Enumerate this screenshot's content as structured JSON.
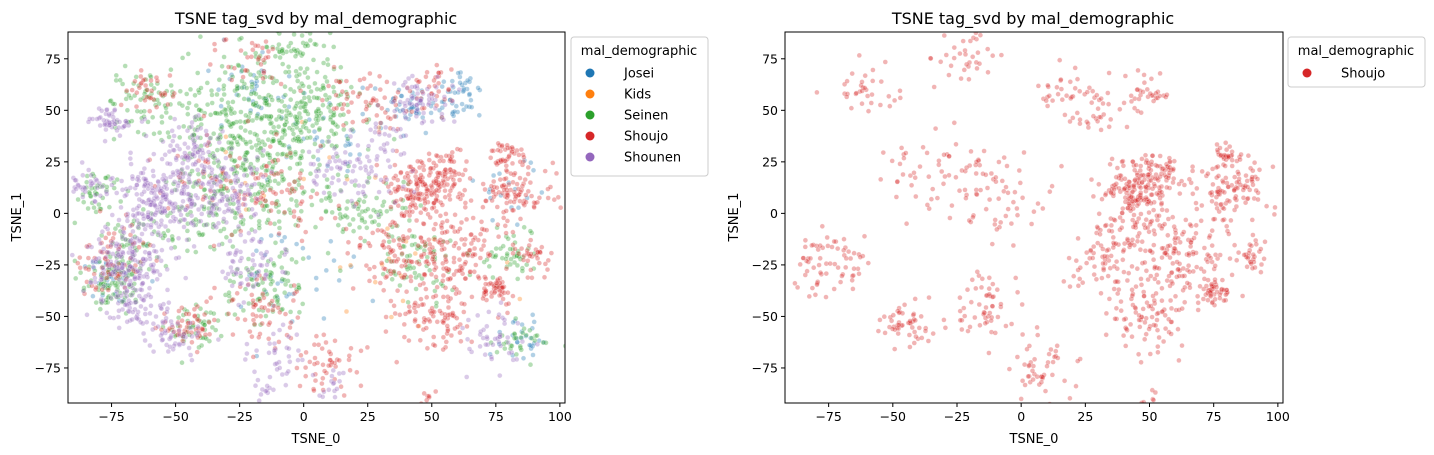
{
  "chart_data": [
    {
      "type": "scatter",
      "title": "TSNE tag_svd by mal_demographic",
      "xlabel": "TSNE_0",
      "ylabel": "TSNE_1",
      "xlim": [
        -92,
        102
      ],
      "ylim": [
        -92,
        88
      ],
      "xticks": [
        -75,
        -50,
        -25,
        0,
        25,
        50,
        75,
        100
      ],
      "yticks": [
        -75,
        -50,
        -25,
        0,
        25,
        50,
        75
      ],
      "grid": false,
      "legend": {
        "title": "mal_demographic",
        "placement": "outside-top-right"
      },
      "point_alpha": 0.35,
      "series": [
        {
          "name": "Josei",
          "color": "#1f77b4",
          "n": 260,
          "clusters": [
            [
              60,
              58,
              5,
              55
            ],
            [
              40,
              50,
              5,
              45
            ],
            [
              -20,
              60,
              8,
              40
            ],
            [
              0,
              -30,
              12,
              40
            ],
            [
              -75,
              -30,
              6,
              30
            ],
            [
              80,
              10,
              7,
              20
            ],
            [
              85,
              -60,
              6,
              30
            ],
            [
              10,
              35,
              10,
              30
            ]
          ]
        },
        {
          "name": "Kids",
          "color": "#ff7f0e",
          "n": 30,
          "clusters": [
            [
              -10,
              20,
              25,
              15
            ],
            [
              40,
              -30,
              20,
              15
            ]
          ]
        },
        {
          "name": "Seinen",
          "color": "#2ca02c",
          "n": 1300,
          "clusters": [
            [
              -25,
              45,
              14,
              260
            ],
            [
              -10,
              20,
              14,
              170
            ],
            [
              5,
              50,
              9,
              110
            ],
            [
              -60,
              55,
              8,
              70
            ],
            [
              -40,
              0,
              10,
              90
            ],
            [
              -75,
              -35,
              6,
              80
            ],
            [
              -80,
              10,
              5,
              40
            ],
            [
              -15,
              -35,
              8,
              80
            ],
            [
              -5,
              80,
              8,
              70
            ],
            [
              -42,
              -55,
              5,
              45
            ],
            [
              25,
              0,
              8,
              65
            ],
            [
              45,
              -25,
              8,
              60
            ],
            [
              80,
              -20,
              6,
              45
            ],
            [
              -65,
              -15,
              6,
              50
            ],
            [
              85,
              -60,
              5,
              30
            ]
          ]
        },
        {
          "name": "Shoujo",
          "color": "#d62728",
          "n": 1250,
          "clusters": [
            [
              45,
              10,
              7,
              150
            ],
            [
              60,
              -20,
              10,
              120
            ],
            [
              82,
              10,
              7,
              90
            ],
            [
              80,
              28,
              3,
              30
            ],
            [
              75,
              -37,
              3,
              40
            ],
            [
              35,
              -20,
              8,
              75
            ],
            [
              50,
              -50,
              8,
              80
            ],
            [
              55,
              20,
              5,
              45
            ],
            [
              -75,
              -25,
              8,
              60
            ],
            [
              -45,
              -55,
              5,
              45
            ],
            [
              -15,
              -45,
              8,
              50
            ],
            [
              -10,
              10,
              10,
              55
            ],
            [
              10,
              -75,
              8,
              45
            ],
            [
              -60,
              60,
              6,
              30
            ],
            [
              -20,
              75,
              6,
              30
            ],
            [
              15,
              60,
              6,
              25
            ],
            [
              48,
              -90,
              2,
              5
            ],
            [
              90,
              -20,
              4,
              25
            ],
            [
              -35,
              20,
              10,
              40
            ],
            [
              30,
              50,
              6,
              25
            ],
            [
              48,
              60,
              5,
              30
            ]
          ]
        },
        {
          "name": "Shounen",
          "color": "#9467bd",
          "n": 1100,
          "clusters": [
            [
              -55,
              5,
              9,
              200
            ],
            [
              -70,
              -25,
              8,
              150
            ],
            [
              -30,
              10,
              8,
              110
            ],
            [
              -45,
              30,
              7,
              70
            ],
            [
              -75,
              45,
              4,
              45
            ],
            [
              -65,
              -45,
              6,
              65
            ],
            [
              -85,
              15,
              4,
              30
            ],
            [
              -20,
              -25,
              7,
              55
            ],
            [
              45,
              55,
              6,
              55
            ],
            [
              15,
              20,
              8,
              50
            ],
            [
              -50,
              -60,
              5,
              40
            ],
            [
              75,
              -60,
              6,
              40
            ],
            [
              30,
              30,
              8,
              40
            ],
            [
              -10,
              -70,
              6,
              30
            ],
            [
              10,
              -85,
              4,
              15
            ],
            [
              -15,
              -87,
              2,
              10
            ]
          ]
        }
      ]
    },
    {
      "type": "scatter",
      "title": "TSNE tag_svd by mal_demographic",
      "xlabel": "TSNE_0",
      "ylabel": "TSNE_1",
      "xlim": [
        -92,
        102
      ],
      "ylim": [
        -92,
        88
      ],
      "xticks": [
        -75,
        -50,
        -25,
        0,
        25,
        50,
        75,
        100
      ],
      "yticks": [
        -75,
        -50,
        -25,
        0,
        25,
        50,
        75
      ],
      "grid": false,
      "legend": {
        "title": "mal_demographic",
        "placement": "outside-top-right"
      },
      "point_alpha": 0.35,
      "series": [
        {
          "name": "Shoujo",
          "color": "#d62728",
          "n": 1250,
          "clusters": [
            [
              45,
              10,
              7,
              150
            ],
            [
              60,
              -20,
              10,
              120
            ],
            [
              82,
              10,
              7,
              90
            ],
            [
              80,
              28,
              3,
              30
            ],
            [
              75,
              -37,
              3,
              40
            ],
            [
              35,
              -20,
              8,
              75
            ],
            [
              50,
              -50,
              8,
              80
            ],
            [
              55,
              20,
              5,
              45
            ],
            [
              -75,
              -25,
              8,
              60
            ],
            [
              -45,
              -55,
              5,
              45
            ],
            [
              -15,
              -45,
              8,
              50
            ],
            [
              -10,
              10,
              10,
              55
            ],
            [
              10,
              -75,
              8,
              45
            ],
            [
              -60,
              60,
              6,
              30
            ],
            [
              -20,
              75,
              6,
              30
            ],
            [
              15,
              60,
              6,
              25
            ],
            [
              48,
              -90,
              2,
              5
            ],
            [
              90,
              -20,
              4,
              25
            ],
            [
              -35,
              20,
              10,
              40
            ],
            [
              30,
              50,
              6,
              25
            ],
            [
              48,
              60,
              5,
              30
            ]
          ]
        }
      ]
    }
  ]
}
